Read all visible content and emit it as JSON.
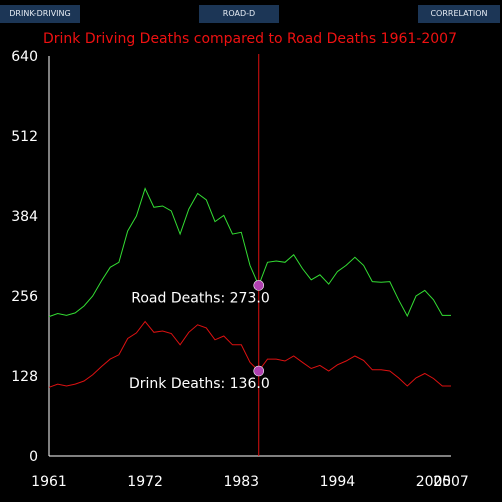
{
  "tabs": [
    {
      "label": "DRINK-DRIVING"
    },
    {
      "label": "ROAD-D"
    },
    {
      "label": "CORRELATION"
    }
  ],
  "colors": {
    "background": "#000000",
    "tab": "#1c3656",
    "road": "#33dd33",
    "drink": "#dd1111",
    "marker": "#b040b0",
    "title": "#ee1111"
  },
  "chart_data": {
    "type": "line",
    "title": "Drink Driving Deaths compared to Road Deaths 1961-2007",
    "xlabel": "",
    "ylabel": "",
    "xlim": [
      1961,
      2007
    ],
    "ylim": [
      0,
      640
    ],
    "x_ticks": [
      1961,
      1972,
      1983,
      1994,
      2005,
      2007
    ],
    "y_ticks": [
      0,
      128,
      256,
      384,
      512,
      640
    ],
    "grid": false,
    "x": [
      1961,
      1962,
      1963,
      1964,
      1965,
      1966,
      1967,
      1968,
      1969,
      1970,
      1971,
      1972,
      1973,
      1974,
      1975,
      1976,
      1977,
      1978,
      1979,
      1980,
      1981,
      1982,
      1983,
      1984,
      1985,
      1986,
      1987,
      1988,
      1989,
      1990,
      1991,
      1992,
      1993,
      1994,
      1995,
      1996,
      1997,
      1998,
      1999,
      2000,
      2001,
      2002,
      2003,
      2004,
      2005,
      2006,
      2007
    ],
    "series": [
      {
        "name": "Road Deaths",
        "values": [
          223,
          228,
          225,
          229,
          240,
          256,
          280,
          302,
          310,
          360,
          384,
          428,
          398,
          400,
          392,
          355,
          395,
          420,
          410,
          375,
          385,
          355,
          358,
          305,
          273,
          310,
          312,
          310,
          322,
          300,
          282,
          290,
          275,
          295,
          305,
          318,
          305,
          279,
          278,
          279,
          250,
          224,
          256,
          265,
          250,
          225,
          225
        ]
      },
      {
        "name": "Drink Deaths",
        "values": [
          110,
          115,
          112,
          115,
          120,
          130,
          143,
          155,
          162,
          188,
          197,
          215,
          198,
          200,
          196,
          178,
          198,
          210,
          205,
          186,
          192,
          178,
          178,
          150,
          136,
          155,
          155,
          152,
          160,
          150,
          140,
          145,
          136,
          146,
          152,
          160,
          153,
          138,
          138,
          136,
          125,
          112,
          125,
          132,
          124,
          112,
          112
        ]
      }
    ],
    "cursor": {
      "year": 1985,
      "road_label": "Road Deaths: 273.0",
      "drink_label": "Drink Deaths: 136.0"
    }
  }
}
